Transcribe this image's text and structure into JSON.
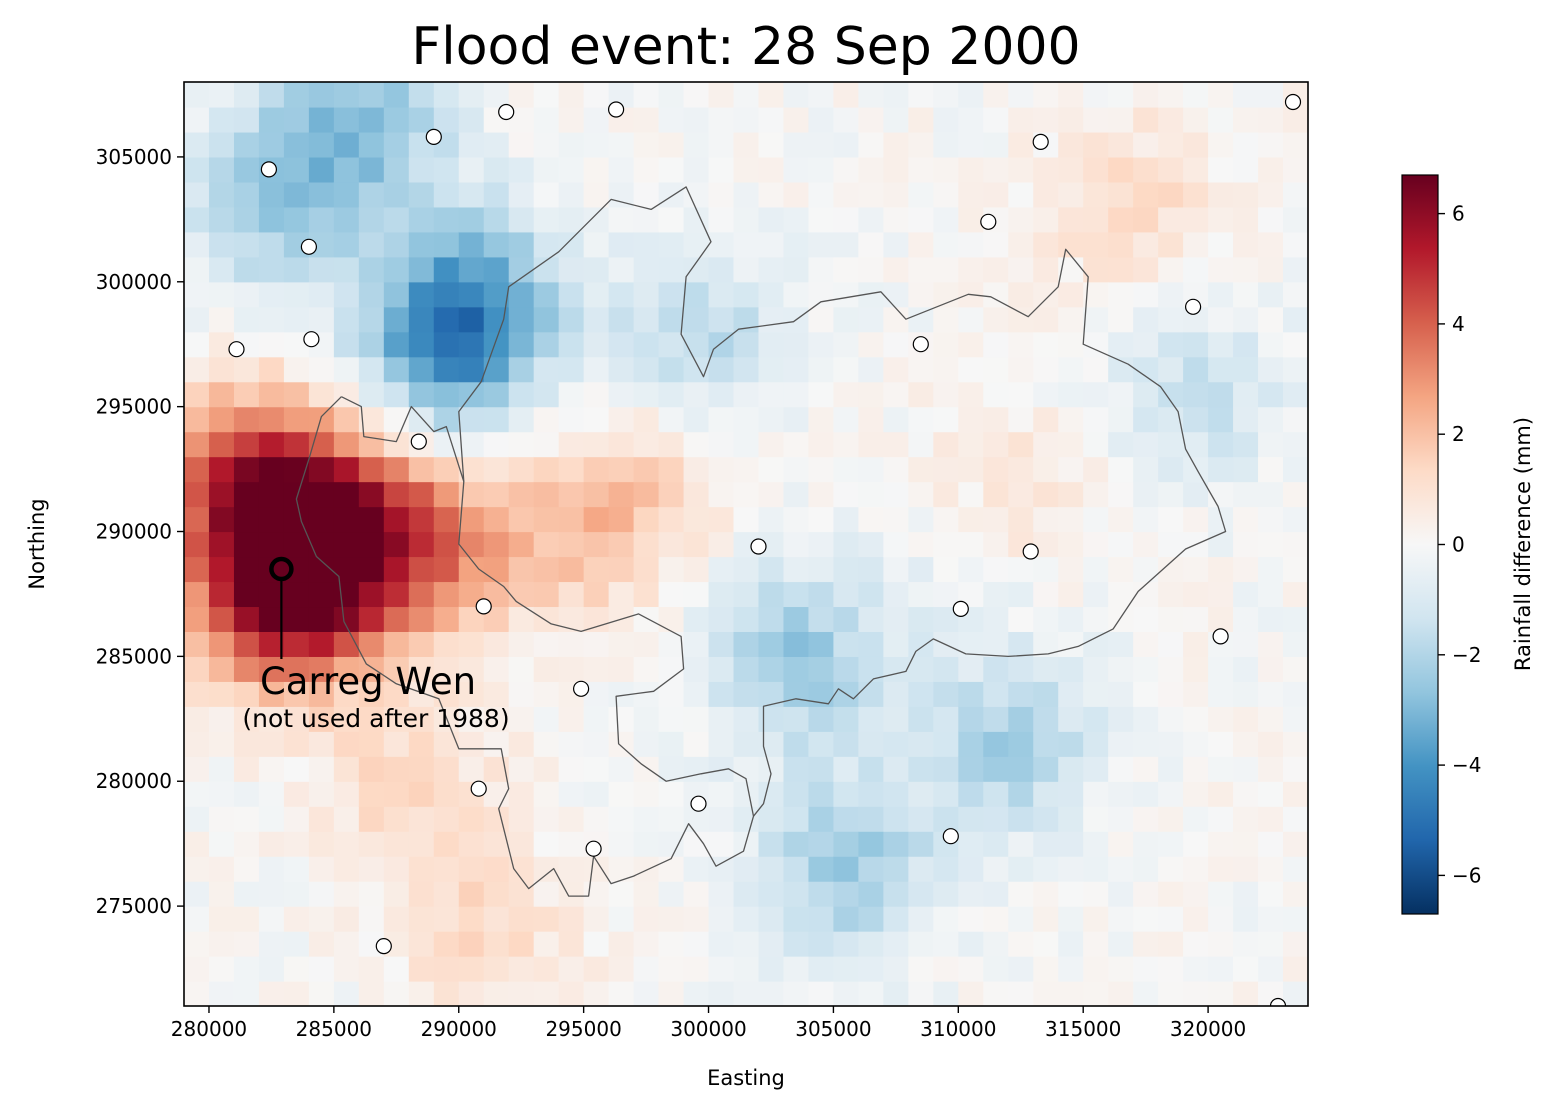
{
  "chart_data": {
    "type": "heatmap",
    "title": "Flood event: 28 Sep 2000",
    "xlabel": "Easting",
    "ylabel": "Northing",
    "xlim": [
      279000,
      324000
    ],
    "ylim": [
      271000,
      308000
    ],
    "xticks": [
      280000,
      285000,
      290000,
      295000,
      300000,
      305000,
      310000,
      315000,
      320000
    ],
    "yticks": [
      275000,
      280000,
      285000,
      290000,
      295000,
      300000,
      305000
    ],
    "colorbar": {
      "label": "Rainfall difference (mm)",
      "vmin": -6.7,
      "vmax": 6.7,
      "ticks": [
        -6,
        -4,
        -2,
        0,
        2,
        4,
        6
      ],
      "colormap": "RdBu_r",
      "colors": [
        "#053061",
        "#2166ac",
        "#4393c3",
        "#92c5de",
        "#d1e5f0",
        "#f7f7f7",
        "#fddbc7",
        "#f4a582",
        "#d6604d",
        "#b2182b",
        "#67001f"
      ]
    },
    "grid_cell_size_m": 1000,
    "grid_hotspots": [
      {
        "easting": 283000,
        "northing": 287500,
        "value": 6.2
      },
      {
        "easting": 284500,
        "northing": 290500,
        "value": 4.5
      },
      {
        "easting": 281000,
        "northing": 292500,
        "value": 3.5
      },
      {
        "easting": 288500,
        "northing": 289500,
        "value": 3.3
      },
      {
        "easting": 295000,
        "northing": 290000,
        "value": 1.8
      },
      {
        "easting": 298000,
        "northing": 293000,
        "value": 1.0
      },
      {
        "easting": 312000,
        "northing": 291000,
        "value": 1.2
      },
      {
        "easting": 317000,
        "northing": 303000,
        "value": 1.3
      },
      {
        "easting": 291000,
        "northing": 274000,
        "value": 1.2
      },
      {
        "easting": 288000,
        "northing": 280000,
        "value": 1.3
      },
      {
        "easting": 286000,
        "northing": 306500,
        "value": -2.8
      },
      {
        "easting": 282500,
        "northing": 303000,
        "value": -2.3
      },
      {
        "easting": 290500,
        "northing": 299500,
        "value": -2.8
      },
      {
        "easting": 289500,
        "northing": 297000,
        "value": -3.2
      },
      {
        "easting": 299500,
        "northing": 297500,
        "value": -2.0
      },
      {
        "easting": 303500,
        "northing": 285000,
        "value": -2.5
      },
      {
        "easting": 305500,
        "northing": 276500,
        "value": -2.4
      },
      {
        "easting": 312000,
        "northing": 281500,
        "value": -2.2
      },
      {
        "easting": 319500,
        "northing": 295500,
        "value": -1.5
      },
      {
        "easting": 310500,
        "northing": 289000,
        "value": -0.8
      }
    ],
    "gauge_points": [
      {
        "easting": 282400,
        "northing": 304500
      },
      {
        "easting": 289000,
        "northing": 305800
      },
      {
        "easting": 291900,
        "northing": 306800
      },
      {
        "easting": 296300,
        "northing": 306900
      },
      {
        "easting": 284000,
        "northing": 301400
      },
      {
        "easting": 281100,
        "northing": 297300
      },
      {
        "easting": 284100,
        "northing": 297700
      },
      {
        "easting": 288400,
        "northing": 293600
      },
      {
        "easting": 291000,
        "northing": 287000
      },
      {
        "easting": 294900,
        "northing": 283700
      },
      {
        "easting": 290800,
        "northing": 279700
      },
      {
        "easting": 287000,
        "northing": 273400
      },
      {
        "easting": 295400,
        "northing": 277300
      },
      {
        "easting": 299600,
        "northing": 279100
      },
      {
        "easting": 302000,
        "northing": 289400
      },
      {
        "easting": 308500,
        "northing": 297500
      },
      {
        "easting": 309700,
        "northing": 277800
      },
      {
        "easting": 310100,
        "northing": 286900
      },
      {
        "easting": 311200,
        "northing": 302400
      },
      {
        "easting": 313300,
        "northing": 305600
      },
      {
        "easting": 312900,
        "northing": 289200
      },
      {
        "easting": 319400,
        "northing": 299000
      },
      {
        "easting": 320500,
        "northing": 285800
      },
      {
        "easting": 323400,
        "northing": 307200
      },
      {
        "easting": 322800,
        "northing": 271000
      }
    ],
    "highlighted_gauge": {
      "easting": 282900,
      "northing": 288500
    },
    "catchment_outline": [
      [
        285300,
        295400
      ],
      [
        286100,
        295000
      ],
      [
        286200,
        293800
      ],
      [
        287500,
        293600
      ],
      [
        288100,
        295000
      ],
      [
        289000,
        294000
      ],
      [
        289500,
        294200
      ],
      [
        290200,
        292000
      ],
      [
        290000,
        289500
      ],
      [
        290800,
        288500
      ],
      [
        291800,
        287800
      ],
      [
        292300,
        287200
      ],
      [
        293700,
        286300
      ],
      [
        294900,
        286000
      ],
      [
        297200,
        286700
      ],
      [
        298900,
        285800
      ],
      [
        299000,
        284500
      ],
      [
        297800,
        283600
      ],
      [
        296300,
        283400
      ],
      [
        296400,
        281500
      ],
      [
        297300,
        280700
      ],
      [
        298300,
        280000
      ],
      [
        299700,
        280300
      ],
      [
        300800,
        280500
      ],
      [
        301500,
        280100
      ],
      [
        301800,
        278600
      ],
      [
        301400,
        277200
      ],
      [
        300300,
        276600
      ],
      [
        299800,
        277500
      ],
      [
        299200,
        278300
      ],
      [
        298500,
        276900
      ],
      [
        297000,
        276200
      ],
      [
        296100,
        275900
      ],
      [
        295400,
        277000
      ],
      [
        295200,
        275400
      ],
      [
        294400,
        275400
      ],
      [
        293800,
        276500
      ],
      [
        292800,
        275700
      ],
      [
        292200,
        276500
      ],
      [
        291600,
        278900
      ],
      [
        292000,
        279700
      ],
      [
        291700,
        281300
      ],
      [
        290000,
        281300
      ],
      [
        289200,
        283300
      ],
      [
        287500,
        283900
      ],
      [
        286300,
        284700
      ],
      [
        285400,
        286400
      ],
      [
        285200,
        288200
      ],
      [
        284300,
        289000
      ],
      [
        283700,
        290400
      ],
      [
        283500,
        291300
      ],
      [
        284000,
        292900
      ],
      [
        284500,
        294600
      ],
      [
        285300,
        295400
      ]
    ],
    "river_network_outline": [
      [
        290200,
        292000
      ],
      [
        290000,
        294800
      ],
      [
        290900,
        296000
      ],
      [
        291800,
        298500
      ],
      [
        292000,
        299800
      ],
      [
        294000,
        301200
      ],
      [
        296100,
        303300
      ],
      [
        297700,
        302900
      ],
      [
        299100,
        303800
      ],
      [
        300100,
        301600
      ],
      [
        299100,
        300200
      ],
      [
        298900,
        297900
      ],
      [
        299800,
        296200
      ],
      [
        300200,
        297300
      ],
      [
        301200,
        298100
      ],
      [
        303400,
        298400
      ],
      [
        304500,
        299200
      ],
      [
        306900,
        299600
      ],
      [
        307900,
        298500
      ],
      [
        310400,
        299500
      ],
      [
        311300,
        299400
      ],
      [
        312800,
        298600
      ],
      [
        314000,
        299800
      ],
      [
        314300,
        301300
      ],
      [
        315200,
        300200
      ],
      [
        315000,
        297500
      ],
      [
        316800,
        296700
      ],
      [
        318100,
        295800
      ],
      [
        318800,
        294800
      ],
      [
        319100,
        293300
      ],
      [
        319600,
        292400
      ],
      [
        320400,
        291000
      ],
      [
        320700,
        290000
      ],
      [
        319100,
        289300
      ],
      [
        317200,
        287600
      ],
      [
        316200,
        286100
      ],
      [
        314800,
        285400
      ],
      [
        313600,
        285100
      ],
      [
        312000,
        285000
      ],
      [
        310300,
        285100
      ],
      [
        309000,
        285700
      ],
      [
        308300,
        285200
      ],
      [
        307900,
        284400
      ],
      [
        306600,
        284100
      ],
      [
        305800,
        283300
      ],
      [
        305200,
        283700
      ],
      [
        304800,
        283100
      ],
      [
        303500,
        283300
      ],
      [
        302200,
        283000
      ],
      [
        302200,
        281400
      ],
      [
        302500,
        280300
      ],
      [
        302200,
        279100
      ],
      [
        301800,
        278600
      ]
    ],
    "annotations": [
      {
        "text": "Carreg Wen",
        "easting": 283000,
        "northing": 283800
      },
      {
        "text": "(not used after 1988)",
        "easting": 285700,
        "northing": 282300
      }
    ]
  }
}
